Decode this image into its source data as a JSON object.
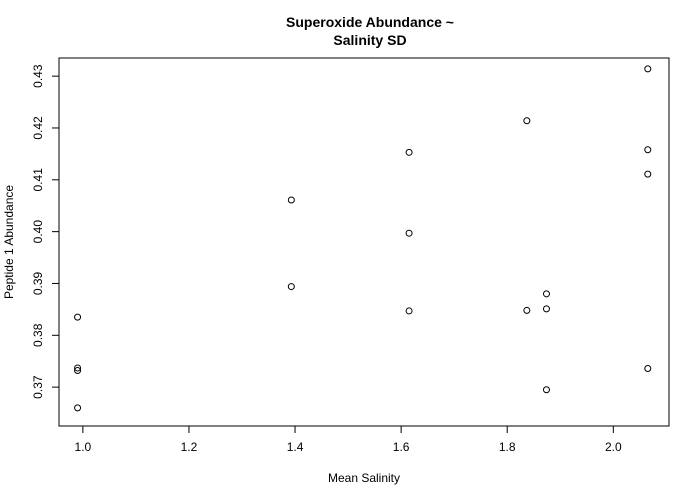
{
  "chart_data": {
    "type": "scatter",
    "title_lines": [
      "Superoxide Abundance ~",
      "Salinity SD"
    ],
    "xlabel": "Mean Salinity",
    "ylabel": "Peptide 1 Abundance",
    "xlim": [
      0.955,
      2.105
    ],
    "ylim": [
      0.3625,
      0.4335
    ],
    "x_ticks": [
      1.0,
      1.2,
      1.4,
      1.6,
      1.8,
      2.0
    ],
    "x_tick_labels": [
      "1.0",
      "1.2",
      "1.4",
      "1.6",
      "1.8",
      "2.0"
    ],
    "y_ticks": [
      0.37,
      0.38,
      0.39,
      0.4,
      0.41,
      0.42,
      0.43
    ],
    "y_tick_labels": [
      "0.37",
      "0.38",
      "0.39",
      "0.40",
      "0.41",
      "0.42",
      "0.43"
    ],
    "grid": false,
    "points": [
      {
        "x": 0.99,
        "y": 0.3835
      },
      {
        "x": 0.99,
        "y": 0.3737
      },
      {
        "x": 0.99,
        "y": 0.3732
      },
      {
        "x": 0.99,
        "y": 0.366
      },
      {
        "x": 1.393,
        "y": 0.4061
      },
      {
        "x": 1.393,
        "y": 0.3894
      },
      {
        "x": 1.615,
        "y": 0.4153
      },
      {
        "x": 1.615,
        "y": 0.3997
      },
      {
        "x": 1.615,
        "y": 0.3847
      },
      {
        "x": 1.837,
        "y": 0.4214
      },
      {
        "x": 1.837,
        "y": 0.3848
      },
      {
        "x": 1.874,
        "y": 0.388
      },
      {
        "x": 1.874,
        "y": 0.3851
      },
      {
        "x": 1.874,
        "y": 0.3695
      },
      {
        "x": 2.065,
        "y": 0.4314
      },
      {
        "x": 2.065,
        "y": 0.4158
      },
      {
        "x": 2.065,
        "y": 0.4111
      },
      {
        "x": 2.065,
        "y": 0.3736
      }
    ]
  }
}
